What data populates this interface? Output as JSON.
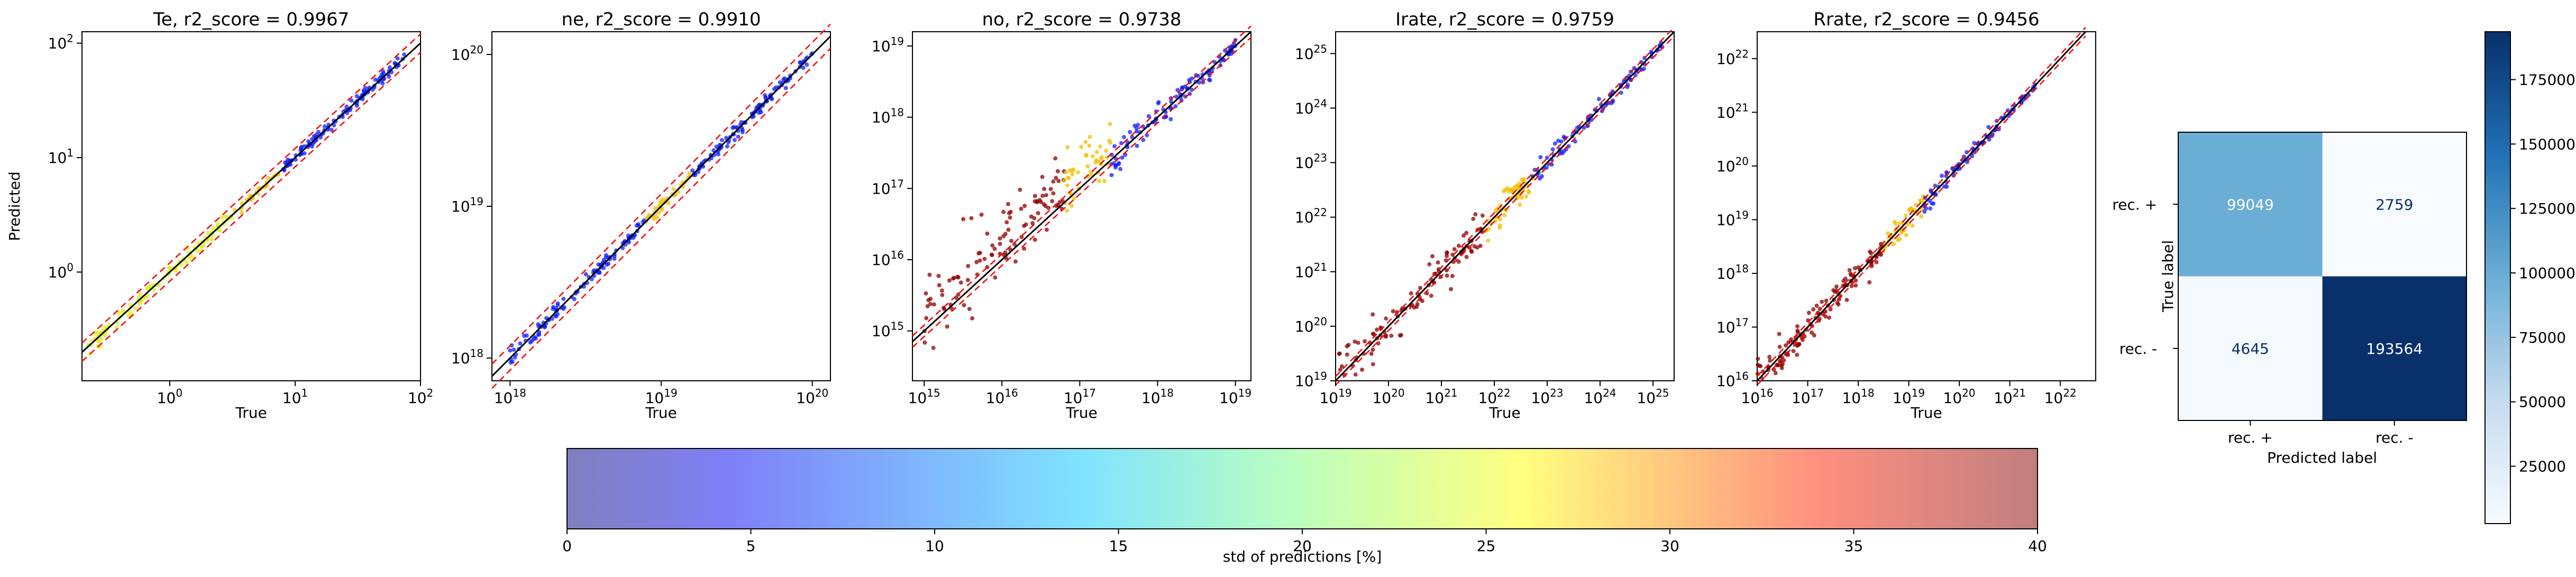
{
  "figure": {
    "colorbar_label": "std of predictions [%]",
    "colorbar_ticks": [
      "0",
      "5",
      "10",
      "15",
      "20",
      "25",
      "30",
      "35",
      "40"
    ],
    "cm_colorbar_ticks": [
      "25000",
      "50000",
      "75000",
      "100000",
      "125000",
      "150000",
      "175000"
    ],
    "colors": {
      "ideal_line": "#000000",
      "band_line": "#ff0000",
      "cm_low": "#f7fbff",
      "cm_high": "#08306b"
    }
  },
  "chart_data": [
    {
      "type": "scatter",
      "title": "Te, r2_score = 0.9967",
      "xlabel": "True",
      "ylabel": "Predicted",
      "scale": "log",
      "xlim_exp": [
        -0.7,
        2.0
      ],
      "ylim_exp": [
        -0.95,
        2.1
      ],
      "xticks": [
        {
          "exp": 0,
          "base": "10",
          "sup": "0"
        },
        {
          "exp": 1,
          "base": "10",
          "sup": "1"
        },
        {
          "exp": 2,
          "base": "10",
          "sup": "2"
        }
      ],
      "yticks": [
        {
          "exp": 0,
          "base": "10",
          "sup": "0"
        },
        {
          "exp": 1,
          "base": "10",
          "sup": "1"
        },
        {
          "exp": 2,
          "base": "10",
          "sup": "2"
        }
      ],
      "data_range_exp": [
        -0.65,
        1.9
      ],
      "spread": 0.06,
      "low_color": "#ddee22",
      "color": "#1020ff"
    },
    {
      "type": "scatter",
      "title": "ne, r2_score = 0.9910",
      "xlabel": "True",
      "ylabel": "",
      "scale": "log",
      "xlim_exp": [
        17.88,
        20.12
      ],
      "ylim_exp": [
        17.85,
        20.15
      ],
      "xticks": [
        {
          "exp": 18,
          "base": "10",
          "sup": "18"
        },
        {
          "exp": 19,
          "base": "10",
          "sup": "19"
        },
        {
          "exp": 20,
          "base": "10",
          "sup": "20"
        }
      ],
      "yticks": [
        {
          "exp": 18,
          "base": "10",
          "sup": "18"
        },
        {
          "exp": 19,
          "base": "10",
          "sup": "19"
        },
        {
          "exp": 20,
          "base": "10",
          "sup": "20"
        }
      ],
      "data_range_exp": [
        18.0,
        20.0
      ],
      "spread": 0.05,
      "low_color": "#1020ff",
      "color": "#1020ff"
    },
    {
      "type": "scatter",
      "title": "no, r2_score = 0.9738",
      "xlabel": "True",
      "ylabel": "",
      "scale": "log",
      "xlim_exp": [
        14.85,
        19.2
      ],
      "ylim_exp": [
        14.3,
        19.2
      ],
      "xticks": [
        {
          "exp": 15,
          "base": "10",
          "sup": "15"
        },
        {
          "exp": 16,
          "base": "10",
          "sup": "16"
        },
        {
          "exp": 17,
          "base": "10",
          "sup": "17"
        },
        {
          "exp": 18,
          "base": "10",
          "sup": "18"
        },
        {
          "exp": 19,
          "base": "10",
          "sup": "19"
        }
      ],
      "yticks": [
        {
          "exp": 15,
          "base": "10",
          "sup": "15"
        },
        {
          "exp": 16,
          "base": "10",
          "sup": "16"
        },
        {
          "exp": 17,
          "base": "10",
          "sup": "17"
        },
        {
          "exp": 18,
          "base": "10",
          "sup": "18"
        },
        {
          "exp": 19,
          "base": "10",
          "sup": "19"
        }
      ],
      "data_range_exp": [
        15.0,
        19.0
      ],
      "spread": 0.45,
      "low_color": "#8b0000",
      "color": "#1020ff"
    },
    {
      "type": "scatter",
      "title": "Irate, r2_score = 0.9759",
      "xlabel": "True",
      "ylabel": "",
      "scale": "log",
      "xlim_exp": [
        19.0,
        25.4
      ],
      "ylim_exp": [
        19.0,
        25.4
      ],
      "xticks": [
        {
          "exp": 19,
          "base": "10",
          "sup": "19"
        },
        {
          "exp": 20,
          "base": "10",
          "sup": "20"
        },
        {
          "exp": 21,
          "base": "10",
          "sup": "21"
        },
        {
          "exp": 22,
          "base": "10",
          "sup": "22"
        },
        {
          "exp": 23,
          "base": "10",
          "sup": "23"
        },
        {
          "exp": 24,
          "base": "10",
          "sup": "24"
        },
        {
          "exp": 25,
          "base": "10",
          "sup": "25"
        }
      ],
      "yticks": [
        {
          "exp": 19,
          "base": "10",
          "sup": "19"
        },
        {
          "exp": 20,
          "base": "10",
          "sup": "20"
        },
        {
          "exp": 21,
          "base": "10",
          "sup": "21"
        },
        {
          "exp": 22,
          "base": "10",
          "sup": "22"
        },
        {
          "exp": 23,
          "base": "10",
          "sup": "23"
        },
        {
          "exp": 24,
          "base": "10",
          "sup": "24"
        },
        {
          "exp": 25,
          "base": "10",
          "sup": "25"
        }
      ],
      "data_range_exp": [
        19.0,
        25.2
      ],
      "spread": 0.4,
      "low_color": "#8b0000",
      "color": "#1020ff"
    },
    {
      "type": "scatter",
      "title": "Rrate, r2_score = 0.9456",
      "xlabel": "True",
      "ylabel": "",
      "scale": "log",
      "xlim_exp": [
        16.0,
        22.7
      ],
      "ylim_exp": [
        16.0,
        22.5
      ],
      "xticks": [
        {
          "exp": 16,
          "base": "10",
          "sup": "16"
        },
        {
          "exp": 17,
          "base": "10",
          "sup": "17"
        },
        {
          "exp": 18,
          "base": "10",
          "sup": "18"
        },
        {
          "exp": 19,
          "base": "10",
          "sup": "19"
        },
        {
          "exp": 20,
          "base": "10",
          "sup": "20"
        },
        {
          "exp": 21,
          "base": "10",
          "sup": "21"
        },
        {
          "exp": 22,
          "base": "10",
          "sup": "22"
        }
      ],
      "yticks": [
        {
          "exp": 16,
          "base": "10",
          "sup": "16"
        },
        {
          "exp": 17,
          "base": "10",
          "sup": "17"
        },
        {
          "exp": 18,
          "base": "10",
          "sup": "18"
        },
        {
          "exp": 19,
          "base": "10",
          "sup": "19"
        },
        {
          "exp": 20,
          "base": "10",
          "sup": "20"
        },
        {
          "exp": 21,
          "base": "10",
          "sup": "21"
        },
        {
          "exp": 22,
          "base": "10",
          "sup": "22"
        }
      ],
      "data_range_exp": [
        16.0,
        21.5
      ],
      "spread": 0.35,
      "low_color": "#8b0000",
      "color": "#1020ff"
    },
    {
      "type": "heatmap",
      "title": "",
      "xlabel": "Predicted label",
      "ylabel": "True label",
      "x_categories": [
        "rec. +",
        "rec. -"
      ],
      "y_categories": [
        "rec. +",
        "rec. -"
      ],
      "values": [
        [
          99049,
          2759
        ],
        [
          4645,
          193564
        ]
      ],
      "vmin": 2759,
      "vmax": 193564
    }
  ]
}
